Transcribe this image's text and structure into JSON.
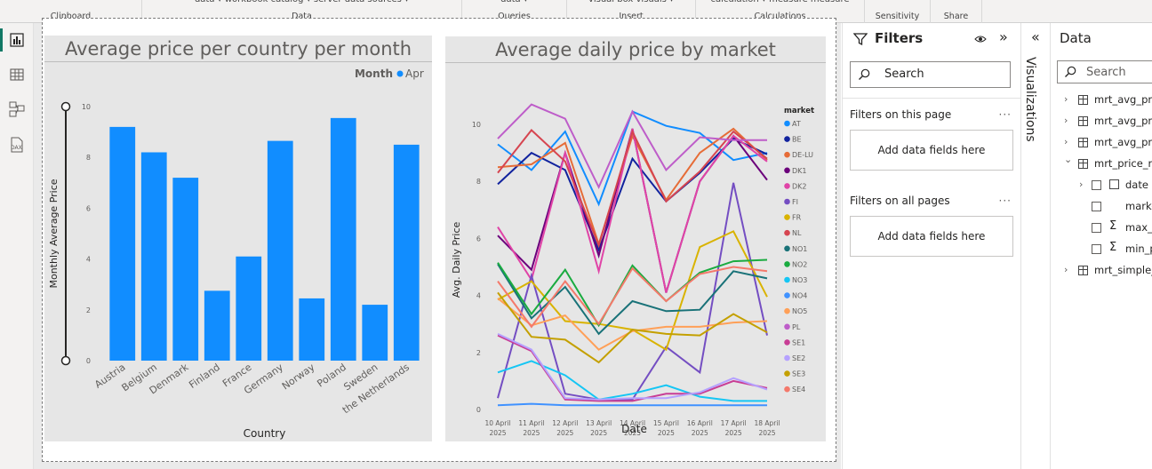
{
  "ribbon": {
    "groups": [
      {
        "label": "Clipboard",
        "cut": ""
      },
      {
        "label": "Data",
        "cut": "data ▾  workbook catalog ▾  server   data            sources ▾"
      },
      {
        "label": "Queries",
        "cut": "data ▾"
      },
      {
        "label": "Insert",
        "cut": "visual   box   visuals ▾"
      },
      {
        "label": "Calculations",
        "cut": "calculation ▾  measure measure"
      },
      {
        "label": "Sensitivity",
        "cut": ""
      },
      {
        "label": "Share",
        "cut": ""
      }
    ]
  },
  "rail": {
    "items": [
      {
        "name": "report-view-icon",
        "active": true
      },
      {
        "name": "table-view-icon",
        "active": false
      },
      {
        "name": "model-view-icon",
        "active": false
      },
      {
        "name": "dax-query-view-icon",
        "active": false
      }
    ],
    "dax_label": "DAX"
  },
  "chart1": {
    "title": "Average price per country per month",
    "legend_title": "Month",
    "legend_items": [
      "Apr"
    ],
    "xlabel": "Country",
    "ylabel": "Monthly Average Price"
  },
  "chart2": {
    "title": "Average daily price by market",
    "xlabel": "Date",
    "ylabel": "Avg. Daily Price",
    "legend_title": "market"
  },
  "chart_data": [
    {
      "type": "bar",
      "title": "Average price per country per month",
      "xlabel": "Country",
      "ylabel": "Monthly Average Price",
      "categories": [
        "Austria",
        "Belgium",
        "Denmark",
        "Finland",
        "France",
        "Germany",
        "Norway",
        "Poland",
        "Sweden",
        "the Netherlands"
      ],
      "series": [
        {
          "name": "Apr",
          "values": [
            9.2,
            8.2,
            7.2,
            2.75,
            4.1,
            8.65,
            2.45,
            9.55,
            2.2,
            8.5
          ],
          "color": "#118DFF"
        }
      ],
      "ylim": [
        0,
        10
      ],
      "yticks": [
        0,
        2,
        4,
        6,
        8,
        10
      ],
      "grid": false,
      "legend": "top-right"
    },
    {
      "type": "line",
      "title": "Average daily price by market",
      "xlabel": "Date",
      "ylabel": "Avg. Daily Price",
      "x": [
        "10 April 2025",
        "11 April 2025",
        "12 April 2025",
        "13 April 2025",
        "14 April 2025",
        "15 April 2025",
        "16 April 2025",
        "17 April 2025",
        "18 April 2025"
      ],
      "ylim": [
        0,
        10.5
      ],
      "yticks": [
        0,
        2,
        4,
        6,
        8,
        10
      ],
      "grid": false,
      "legend": "right",
      "series": [
        {
          "name": "AT",
          "color": "#118DFF",
          "values": [
            9.3,
            8.4,
            9.75,
            7.2,
            10.45,
            9.95,
            9.7,
            8.75,
            9.0
          ]
        },
        {
          "name": "BE",
          "color": "#12239E",
          "values": [
            7.9,
            9.0,
            8.4,
            5.6,
            8.8,
            7.3,
            8.3,
            9.5,
            8.95
          ]
        },
        {
          "name": "DE-LU",
          "color": "#E66C37",
          "values": [
            8.5,
            8.6,
            9.35,
            5.8,
            9.6,
            7.35,
            9.0,
            9.85,
            8.75
          ]
        },
        {
          "name": "DK1",
          "color": "#6B007B",
          "values": [
            6.1,
            4.9,
            9.0,
            5.4,
            9.85,
            4.1,
            8.0,
            9.6,
            8.05
          ]
        },
        {
          "name": "DK2",
          "color": "#E044A7",
          "values": [
            6.4,
            4.55,
            9.0,
            4.85,
            9.85,
            4.1,
            8.0,
            9.6,
            8.7
          ]
        },
        {
          "name": "FI",
          "color": "#744EC2",
          "values": [
            0.4,
            4.7,
            0.55,
            0.35,
            0.35,
            2.2,
            1.3,
            7.95,
            2.6
          ]
        },
        {
          "name": "FR",
          "color": "#D9B300",
          "values": [
            3.85,
            4.5,
            3.1,
            3.0,
            2.8,
            2.1,
            5.7,
            6.25,
            3.95
          ]
        },
        {
          "name": "NL",
          "color": "#D64550",
          "values": [
            8.3,
            9.8,
            8.7,
            5.75,
            9.75,
            7.3,
            8.35,
            9.75,
            8.8
          ]
        },
        {
          "name": "NO1",
          "color": "#197278",
          "values": [
            5.1,
            3.2,
            4.3,
            2.65,
            3.8,
            3.45,
            3.5,
            4.85,
            4.6
          ]
        },
        {
          "name": "NO2",
          "color": "#1AAB40",
          "values": [
            5.15,
            3.35,
            4.9,
            2.95,
            5.05,
            3.8,
            4.8,
            5.2,
            5.25
          ]
        },
        {
          "name": "NO3",
          "color": "#15C6F4",
          "values": [
            1.3,
            1.7,
            1.2,
            0.35,
            0.55,
            0.85,
            0.45,
            0.3,
            0.3
          ]
        },
        {
          "name": "NO4",
          "color": "#4092FF",
          "values": [
            0.15,
            0.2,
            0.15,
            0.15,
            0.15,
            0.15,
            0.15,
            0.15,
            0.15
          ]
        },
        {
          "name": "NO5",
          "color": "#FFA058",
          "values": [
            3.9,
            2.95,
            3.3,
            2.1,
            2.75,
            2.9,
            2.9,
            3.05,
            3.1
          ]
        },
        {
          "name": "PL",
          "color": "#BE5DC9",
          "values": [
            9.5,
            10.7,
            10.2,
            7.8,
            10.45,
            8.4,
            9.55,
            9.45,
            9.45
          ]
        },
        {
          "name": "SE1",
          "color": "#C83D95",
          "values": [
            2.6,
            2.05,
            0.35,
            0.3,
            0.3,
            0.55,
            0.55,
            1.0,
            0.75
          ]
        },
        {
          "name": "SE2",
          "color": "#B5A1FF",
          "values": [
            2.65,
            2.1,
            0.4,
            0.35,
            0.4,
            0.4,
            0.6,
            1.1,
            0.7
          ]
        },
        {
          "name": "SE3",
          "color": "#C4A000",
          "values": [
            4.1,
            2.55,
            2.45,
            1.65,
            2.8,
            2.65,
            2.6,
            3.35,
            2.7
          ]
        },
        {
          "name": "SE4",
          "color": "#F4796B",
          "values": [
            4.5,
            2.9,
            4.5,
            3.0,
            4.95,
            3.8,
            4.75,
            5.0,
            4.85
          ]
        }
      ]
    }
  ],
  "filters": {
    "title": "Filters",
    "search_placeholder": "Search",
    "section_page": "Filters on this page",
    "section_all": "Filters on all pages",
    "add_fields": "Add data fields here",
    "dots": "···"
  },
  "visualizations": {
    "label": "Visualizations"
  },
  "datapane": {
    "title": "Data",
    "search_placeholder": "Search",
    "items": [
      {
        "label": "mrt_avg_pric",
        "kind": "table",
        "chev": "›"
      },
      {
        "label": "mrt_avg_pric",
        "kind": "table",
        "chev": "›"
      },
      {
        "label": "mrt_avg_pric",
        "kind": "table",
        "chev": "›"
      },
      {
        "label": "mrt_price_ra",
        "kind": "table",
        "chev": "⌄"
      },
      {
        "label": "date",
        "kind": "date-field",
        "chev": "›"
      },
      {
        "label": "marke",
        "kind": "field",
        "chev": ""
      },
      {
        "label": "max_p",
        "kind": "sum-field",
        "chev": ""
      },
      {
        "label": "min_p",
        "kind": "sum-field",
        "chev": ""
      },
      {
        "label": "mrt_simple_",
        "kind": "table",
        "chev": "›"
      }
    ]
  }
}
